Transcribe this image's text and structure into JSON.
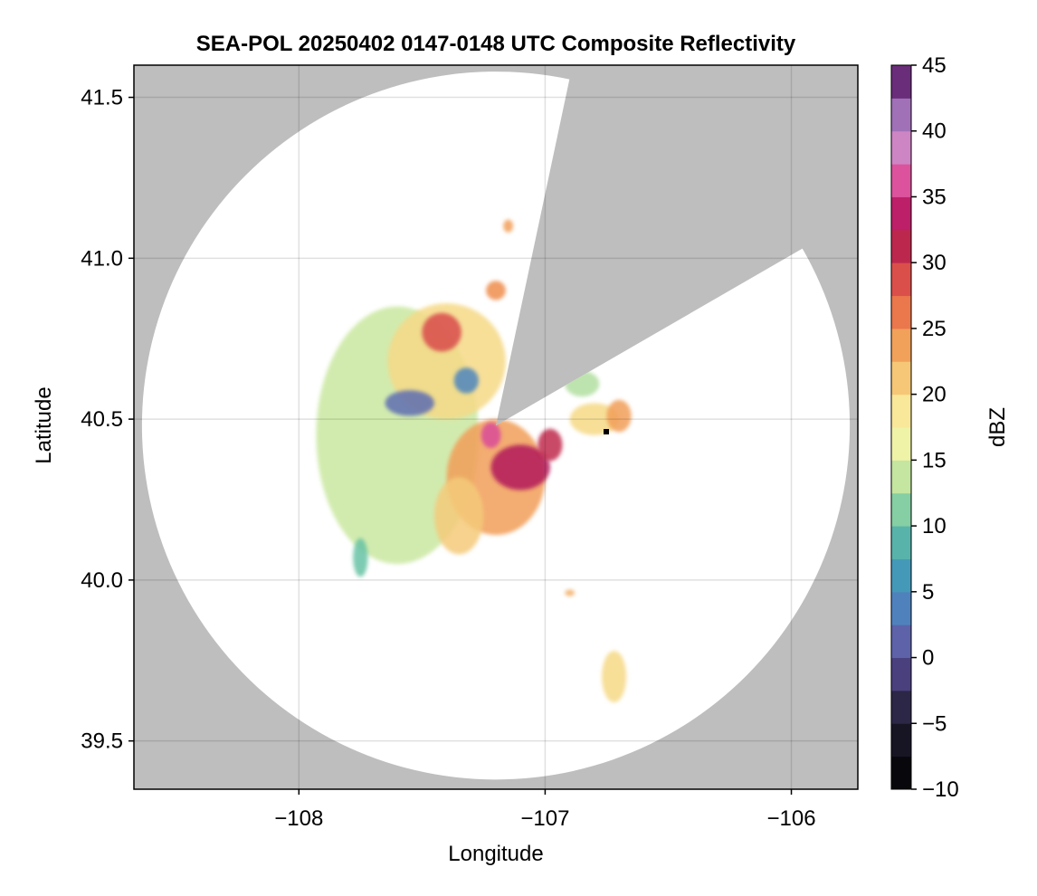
{
  "chart_data": {
    "type": "heatmap",
    "title": "SEA-POL 20250402 0147-0148 UTC Composite Reflectivity",
    "xlabel": "Longitude",
    "ylabel": "Latitude",
    "xlim": [
      -108.67,
      -105.73
    ],
    "ylim": [
      39.35,
      41.6
    ],
    "xticks": [
      -108,
      -107,
      -106
    ],
    "xtick_labels": [
      "−108",
      "−107",
      "−106"
    ],
    "yticks": [
      39.5,
      40.0,
      40.5,
      41.0,
      41.5
    ],
    "ytick_labels": [
      "39.5",
      "40.0",
      "40.5",
      "41.0",
      "41.5"
    ],
    "grid": true,
    "background_color": "#bebebe",
    "radar": {
      "center": [
        -107.2,
        40.48
      ],
      "range_lat_deg": 1.1,
      "blocked_sectors_deg": [
        [
          12,
          60
        ]
      ]
    },
    "colorbar": {
      "label": "dBZ",
      "min": -10,
      "max": 45,
      "step": 2.5,
      "ticks": [
        -10,
        -5,
        0,
        5,
        10,
        15,
        20,
        25,
        30,
        35,
        40,
        45
      ],
      "tick_labels": [
        "−10",
        "−5",
        "0",
        "5",
        "10",
        "15",
        "20",
        "25",
        "30",
        "35",
        "40",
        "45"
      ],
      "colormap": "Spectral",
      "anchor_colors": [
        [
          -10,
          "#000000"
        ],
        [
          -5,
          "#1e1a2e"
        ],
        [
          -2.5,
          "#3a3160"
        ],
        [
          0,
          "#5a4f9a"
        ],
        [
          2.5,
          "#5f75b8"
        ],
        [
          5,
          "#3f8fc0"
        ],
        [
          7.5,
          "#4aa3b0"
        ],
        [
          10,
          "#66c2a5"
        ],
        [
          12.5,
          "#a6d9a0"
        ],
        [
          15,
          "#e1f2a0"
        ],
        [
          17.5,
          "#fbf4ae"
        ],
        [
          20,
          "#f6d986"
        ],
        [
          22.5,
          "#f3b467"
        ],
        [
          25,
          "#ef8d4d"
        ],
        [
          27.5,
          "#e6604a"
        ],
        [
          30,
          "#cf3d4a"
        ],
        [
          32.5,
          "#a8124f"
        ],
        [
          35,
          "#d12c82"
        ],
        [
          37.5,
          "#e678b8"
        ],
        [
          40,
          "#b592cd"
        ],
        [
          42.5,
          "#8a4fa0"
        ],
        [
          45,
          "#4a0a52"
        ]
      ]
    },
    "echoes": [
      {
        "lon": -107.6,
        "lat": 40.45,
        "rlon": 0.33,
        "rlat": 0.4,
        "dbz": 14
      },
      {
        "lon": -107.4,
        "lat": 40.68,
        "rlon": 0.24,
        "rlat": 0.18,
        "dbz": 20
      },
      {
        "lon": -107.42,
        "lat": 40.77,
        "rlon": 0.08,
        "rlat": 0.06,
        "dbz": 29
      },
      {
        "lon": -107.2,
        "lat": 40.32,
        "rlon": 0.2,
        "rlat": 0.18,
        "dbz": 24
      },
      {
        "lon": -107.1,
        "lat": 40.35,
        "rlon": 0.12,
        "rlat": 0.07,
        "dbz": 33
      },
      {
        "lon": -107.22,
        "lat": 40.45,
        "rlon": 0.04,
        "rlat": 0.04,
        "dbz": 36
      },
      {
        "lon": -107.55,
        "lat": 40.55,
        "rlon": 0.1,
        "rlat": 0.04,
        "dbz": 2
      },
      {
        "lon": -107.32,
        "lat": 40.62,
        "rlon": 0.05,
        "rlat": 0.04,
        "dbz": 4
      },
      {
        "lon": -107.35,
        "lat": 40.2,
        "rlon": 0.1,
        "rlat": 0.12,
        "dbz": 21
      },
      {
        "lon": -106.8,
        "lat": 40.5,
        "rlon": 0.1,
        "rlat": 0.05,
        "dbz": 20
      },
      {
        "lon": -106.7,
        "lat": 40.51,
        "rlon": 0.05,
        "rlat": 0.05,
        "dbz": 24
      },
      {
        "lon": -106.85,
        "lat": 40.61,
        "rlon": 0.07,
        "rlat": 0.04,
        "dbz": 13
      },
      {
        "lon": -106.72,
        "lat": 39.7,
        "rlon": 0.05,
        "rlat": 0.08,
        "dbz": 20
      },
      {
        "lon": -107.15,
        "lat": 41.1,
        "rlon": 0.02,
        "rlat": 0.02,
        "dbz": 24
      },
      {
        "lon": -107.2,
        "lat": 40.9,
        "rlon": 0.04,
        "rlat": 0.03,
        "dbz": 25
      },
      {
        "lon": -106.9,
        "lat": 39.96,
        "rlon": 0.02,
        "rlat": 0.01,
        "dbz": 23
      },
      {
        "lon": -107.75,
        "lat": 40.07,
        "rlon": 0.03,
        "rlat": 0.06,
        "dbz": 10
      },
      {
        "lon": -106.98,
        "lat": 40.42,
        "rlon": 0.05,
        "rlat": 0.05,
        "dbz": 31
      }
    ]
  }
}
